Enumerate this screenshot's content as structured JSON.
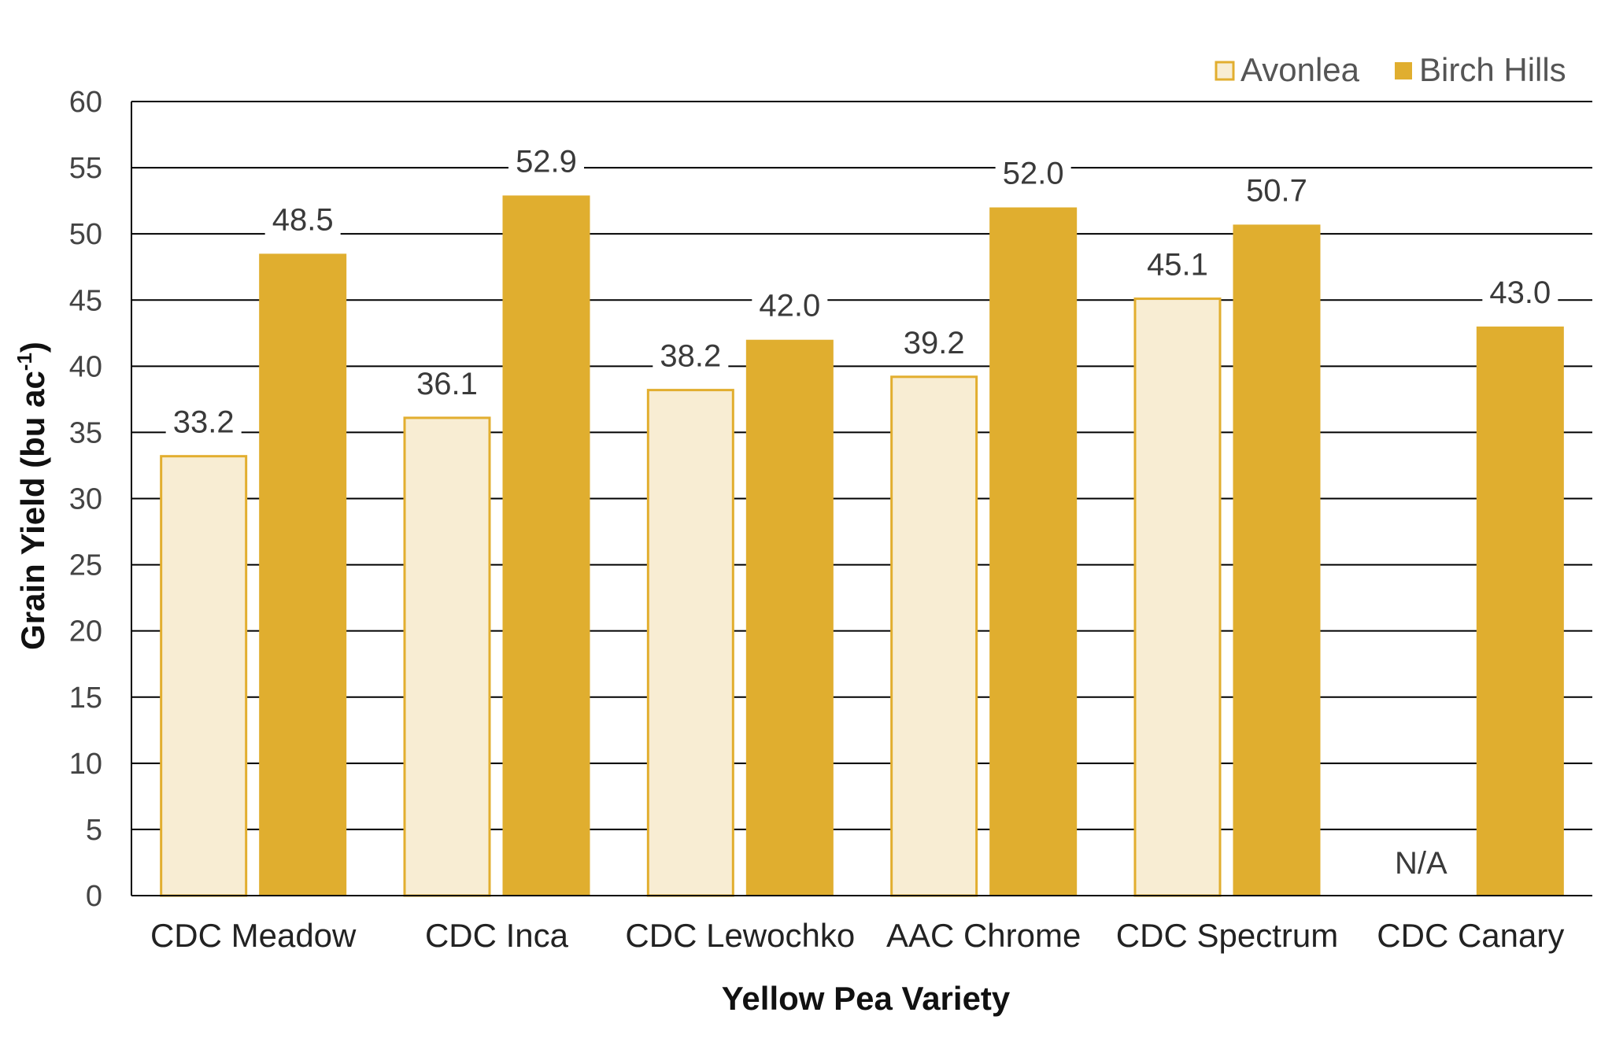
{
  "chart_data": {
    "type": "bar",
    "title": "",
    "xlabel": "Yellow Pea Variety",
    "ylabel": {
      "main": "Grain Yield (bu ac",
      "sup": "-1",
      "end": ")"
    },
    "ylim": [
      0,
      60
    ],
    "yticks": [
      0,
      5,
      10,
      15,
      20,
      25,
      30,
      35,
      40,
      45,
      50,
      55,
      60
    ],
    "grid": true,
    "legend_position": "top-right",
    "categories": [
      "CDC Meadow",
      "CDC Inca",
      "CDC Lewochko",
      "AAC Chrome",
      "CDC Spectrum",
      "CDC Canary"
    ],
    "series": [
      {
        "name": "Avonlea",
        "values": [
          33.2,
          36.1,
          38.2,
          39.2,
          45.1,
          null
        ],
        "labels": [
          "33.2",
          "36.1",
          "38.2",
          "39.2",
          "45.1",
          "N/A"
        ],
        "fill": "#F8EDD3",
        "stroke": "#E2AE2F"
      },
      {
        "name": "Birch Hills",
        "values": [
          48.5,
          52.9,
          42.0,
          52.0,
          50.7,
          43.0
        ],
        "labels": [
          "48.5",
          "52.9",
          "42.0",
          "52.0",
          "50.7",
          "43.0"
        ],
        "fill": "#E0AE2F",
        "stroke": "#E0AE2F"
      }
    ]
  }
}
